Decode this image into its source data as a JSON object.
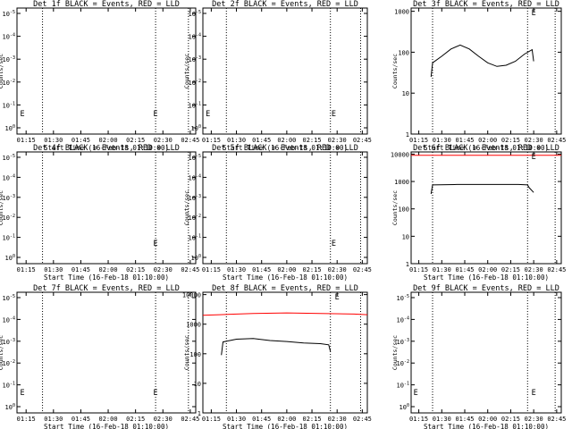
{
  "chart_data": [
    {
      "type": "line",
      "title": "Det 1f BLACK = Events, RED = LLD",
      "xlabel": "Start Time (16-Feb-18 01:10:00)",
      "ylabel": "Counts/sec",
      "x_ticks": [
        "01:15",
        "01:30",
        "01:45",
        "02:00",
        "02:15",
        "02:30",
        "02:45"
      ],
      "y_log": true,
      "y_ticks": [
        "10^0",
        "10^-1",
        "10^-2",
        "10^-3",
        "10^-4",
        "10^-5"
      ],
      "ylim": [
        -5,
        0
      ],
      "markers": [
        {
          "x": "01:13",
          "label": "E"
        },
        {
          "x": "02:26",
          "label": "E"
        }
      ],
      "dotted_lines_x": [
        "01:24",
        "02:26",
        "02:44"
      ],
      "series": []
    },
    {
      "type": "line",
      "title": "Det 2f BLACK = Events, RED = LLD",
      "xlabel": "Start Time (16-Feb-18 01:10:00)",
      "ylabel": "Counts/sec",
      "x_ticks": [
        "01:15",
        "01:30",
        "01:45",
        "02:00",
        "02:15",
        "02:30",
        "02:45"
      ],
      "y_log": true,
      "y_ticks": [
        "10^0",
        "10^-1",
        "10^-2",
        "10^-3",
        "10^-4",
        "10^-5"
      ],
      "ylim": [
        -5,
        0
      ],
      "markers": [
        {
          "x": "01:13",
          "label": "E"
        },
        {
          "x": "02:28",
          "label": "E"
        }
      ],
      "dotted_lines_x": [
        "01:24",
        "02:26",
        "02:44"
      ],
      "series": []
    },
    {
      "type": "line",
      "title": "Det 3f BLACK = Events, RED = LLD",
      "xlabel": "Start Time (16-Feb-18 01:10:00)",
      "ylabel": "Counts/sec",
      "x_ticks": [
        "01:15",
        "01:30",
        "01:45",
        "02:00",
        "02:15",
        "02:30",
        "02:45"
      ],
      "y_log": true,
      "y_ticks": [
        "1",
        "10",
        "100",
        "1000"
      ],
      "ylim": [
        1,
        1200
      ],
      "markers": [
        {
          "x": "02:30",
          "label": "E"
        }
      ],
      "dotted_lines_x": [
        "01:24",
        "02:26",
        "02:44"
      ],
      "series": [
        {
          "color": "#000000",
          "x": [
            "01:23",
            "01:24",
            "01:30",
            "01:36",
            "01:42",
            "01:48",
            "01:54",
            "02:00",
            "02:06",
            "02:12",
            "02:18",
            "02:24",
            "02:29",
            "02:30"
          ],
          "values": [
            25,
            55,
            80,
            120,
            150,
            120,
            80,
            55,
            45,
            48,
            60,
            90,
            115,
            60
          ]
        }
      ]
    },
    {
      "type": "line",
      "title": "Det 4f BLACK = Events, RED = LLD",
      "xlabel": "Start Time (16-Feb-18 01:10:00)",
      "ylabel": "Counts/sec",
      "x_ticks": [
        "01:15",
        "01:30",
        "01:45",
        "02:00",
        "02:15",
        "02:30",
        "02:45"
      ],
      "y_log": true,
      "y_ticks": [
        "10^0",
        "10^-1",
        "10^-2",
        "10^-3",
        "10^-4",
        "10^-5"
      ],
      "ylim": [
        -5,
        0
      ],
      "markers": [
        {
          "x": "02:26",
          "label": "E"
        }
      ],
      "dotted_lines_x": [
        "01:24",
        "02:26",
        "02:44"
      ],
      "series": []
    },
    {
      "type": "line",
      "title": "Det 5f BLACK = Events, RED = LLD",
      "xlabel": "Start Time (16-Feb-18 01:10:00)",
      "ylabel": "Counts/sec",
      "x_ticks": [
        "01:15",
        "01:30",
        "01:45",
        "02:00",
        "02:15",
        "02:30",
        "02:45"
      ],
      "y_log": true,
      "y_ticks": [
        "10^0",
        "10^-1",
        "10^-2",
        "10^-3",
        "10^-4",
        "10^-5"
      ],
      "ylim": [
        -5,
        0
      ],
      "markers": [
        {
          "x": "02:28",
          "label": "E"
        }
      ],
      "dotted_lines_x": [
        "01:24",
        "02:26",
        "02:44"
      ],
      "series": []
    },
    {
      "type": "line",
      "title": "Det 6f BLACK = Events, RED = LLD",
      "xlabel": "Start Time (16-Feb-18 01:10:00)",
      "ylabel": "Counts/sec",
      "x_ticks": [
        "01:15",
        "01:30",
        "01:45",
        "02:00",
        "02:15",
        "02:30",
        "02:45"
      ],
      "y_log": true,
      "y_ticks": [
        "1",
        "10",
        "100",
        "1000",
        "10000"
      ],
      "ylim": [
        1,
        12000
      ],
      "markers": [
        {
          "x": "02:30",
          "label": "E"
        }
      ],
      "dotted_lines_x": [
        "01:24",
        "02:26",
        "02:44"
      ],
      "series": [
        {
          "color": "#ff0000",
          "x": [
            "01:10",
            "01:30",
            "02:00",
            "02:30",
            "02:48"
          ],
          "values": [
            9000,
            9100,
            9000,
            9050,
            9000
          ]
        },
        {
          "color": "#000000",
          "x": [
            "01:23",
            "01:24",
            "01:40",
            "02:00",
            "02:20",
            "02:26",
            "02:27",
            "02:30"
          ],
          "values": [
            350,
            750,
            780,
            780,
            780,
            750,
            600,
            400
          ]
        }
      ]
    },
    {
      "type": "line",
      "title": "Det 7f BLACK = Events, RED = LLD",
      "xlabel": "Start Time (16-Feb-18 01:10:00)",
      "ylabel": "Counts/sec",
      "x_ticks": [
        "01:15",
        "01:30",
        "01:45",
        "02:00",
        "02:15",
        "02:30",
        "02:45"
      ],
      "y_log": true,
      "y_ticks": [
        "10^0",
        "10^-1",
        "10^-2",
        "10^-3",
        "10^-4",
        "10^-5"
      ],
      "ylim": [
        -5,
        0
      ],
      "markers": [
        {
          "x": "01:13",
          "label": "E"
        },
        {
          "x": "02:26",
          "label": "E"
        }
      ],
      "dotted_lines_x": [
        "01:24",
        "02:26",
        "02:44"
      ],
      "series": []
    },
    {
      "type": "line",
      "title": "Det 8f BLACK = Events, RED = LLD",
      "xlabel": "Start Time (16-Feb-18 01:10:00)",
      "ylabel": "Counts/sec",
      "x_ticks": [
        "01:15",
        "01:30",
        "01:45",
        "02:00",
        "02:15",
        "02:30",
        "02:45"
      ],
      "y_log": true,
      "y_ticks": [
        "1",
        "10",
        "100",
        "1000",
        "10000"
      ],
      "ylim": [
        1,
        12000
      ],
      "markers": [
        {
          "x": "02:30",
          "label": "E"
        }
      ],
      "dotted_lines_x": [
        "01:24",
        "02:26",
        "02:44"
      ],
      "series": [
        {
          "color": "#ff0000",
          "x": [
            "01:10",
            "01:20",
            "01:40",
            "02:00",
            "02:20",
            "02:40",
            "02:48"
          ],
          "values": [
            2000,
            2100,
            2300,
            2400,
            2300,
            2200,
            2100
          ]
        },
        {
          "color": "#000000",
          "x": [
            "01:21",
            "01:22",
            "01:30",
            "01:40",
            "01:50",
            "02:00",
            "02:10",
            "02:20",
            "02:25",
            "02:26"
          ],
          "values": [
            90,
            250,
            310,
            330,
            280,
            260,
            230,
            220,
            200,
            120
          ]
        }
      ]
    },
    {
      "type": "line",
      "title": "Det 9f BLACK = Events, RED = LLD",
      "xlabel": "Start Time (16-Feb-18 01:10:00)",
      "ylabel": "Counts/sec",
      "x_ticks": [
        "01:15",
        "01:30",
        "01:45",
        "02:00",
        "02:15",
        "02:30",
        "02:45"
      ],
      "y_log": true,
      "y_ticks": [
        "10^0",
        "10^-1",
        "10^-2",
        "10^-3",
        "10^-4",
        "10^-5"
      ],
      "ylim": [
        -5,
        0
      ],
      "markers": [
        {
          "x": "01:13",
          "label": "E"
        },
        {
          "x": "02:30",
          "label": "E"
        }
      ],
      "dotted_lines_x": [
        "01:24",
        "02:26",
        "02:44"
      ],
      "series": []
    }
  ]
}
